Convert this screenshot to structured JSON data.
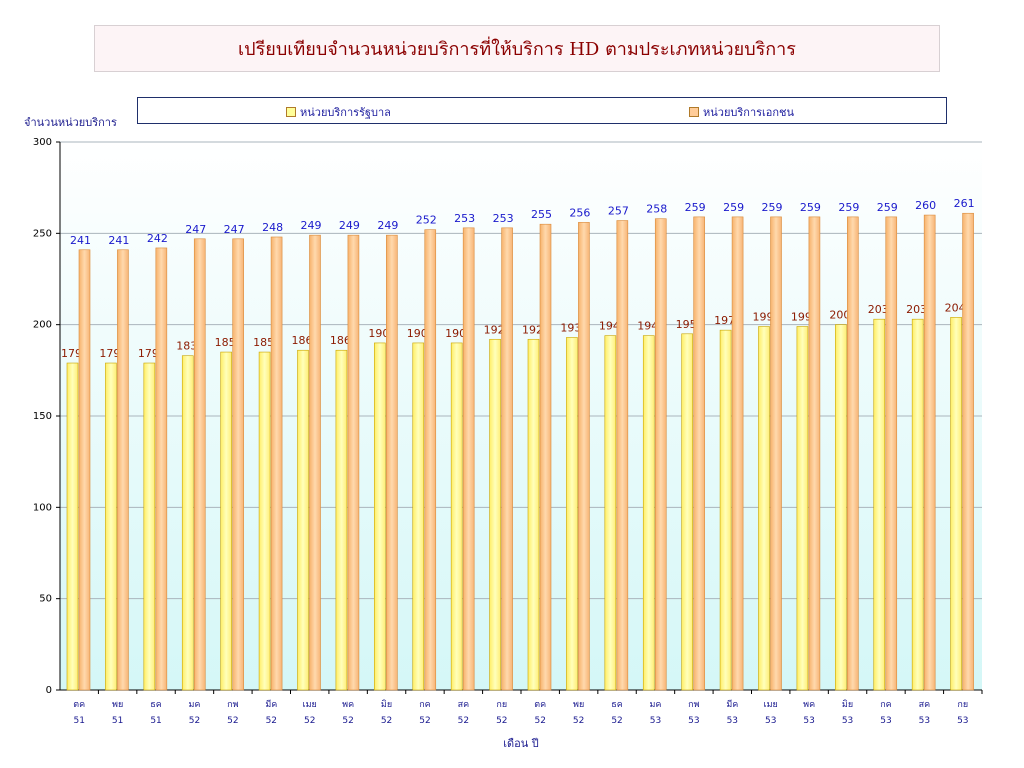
{
  "chart_data": {
    "type": "bar",
    "title": "เปรียบเทียบจำนวนหน่วยบริการที่ให้บริการ HD ตามประเภทหน่วยบริการ",
    "ylabel": "จำนวนหน่วยบริการ",
    "xlabel": "เดือน ปี",
    "ylim": [
      0,
      300
    ],
    "yticks": [
      0,
      50,
      100,
      150,
      200,
      250,
      300
    ],
    "grid": true,
    "legend_position": "top",
    "categories": [
      [
        "ตค",
        "51"
      ],
      [
        "พย",
        "51"
      ],
      [
        "ธค",
        "51"
      ],
      [
        "มค",
        "52"
      ],
      [
        "กพ",
        "52"
      ],
      [
        "มีค",
        "52"
      ],
      [
        "เมย",
        "52"
      ],
      [
        "พค",
        "52"
      ],
      [
        "มิย",
        "52"
      ],
      [
        "กค",
        "52"
      ],
      [
        "สค",
        "52"
      ],
      [
        "กย",
        "52"
      ],
      [
        "ตค",
        "52"
      ],
      [
        "พย",
        "52"
      ],
      [
        "ธค",
        "52"
      ],
      [
        "มค",
        "53"
      ],
      [
        "กพ",
        "53"
      ],
      [
        "มีค",
        "53"
      ],
      [
        "เมย",
        "53"
      ],
      [
        "พค",
        "53"
      ],
      [
        "มิย",
        "53"
      ],
      [
        "กค",
        "53"
      ],
      [
        "สค",
        "53"
      ],
      [
        "กย",
        "53"
      ]
    ],
    "series": [
      {
        "name": "หน่วยบริการรัฐบาล",
        "color": "#ffff99",
        "label_color": "#8b1a00",
        "values": [
          179,
          179,
          179,
          183,
          185,
          185,
          186,
          186,
          190,
          190,
          190,
          192,
          192,
          193,
          194,
          194,
          195,
          197,
          199,
          199,
          200,
          203,
          203,
          204
        ]
      },
      {
        "name": "หน่วยบริการเอกชน",
        "color": "#ffcc99",
        "label_color": "#1a1acc",
        "values": [
          241,
          241,
          242,
          247,
          247,
          248,
          249,
          249,
          249,
          252,
          253,
          253,
          255,
          256,
          257,
          258,
          259,
          259,
          259,
          259,
          259,
          259,
          260,
          261
        ]
      }
    ]
  }
}
